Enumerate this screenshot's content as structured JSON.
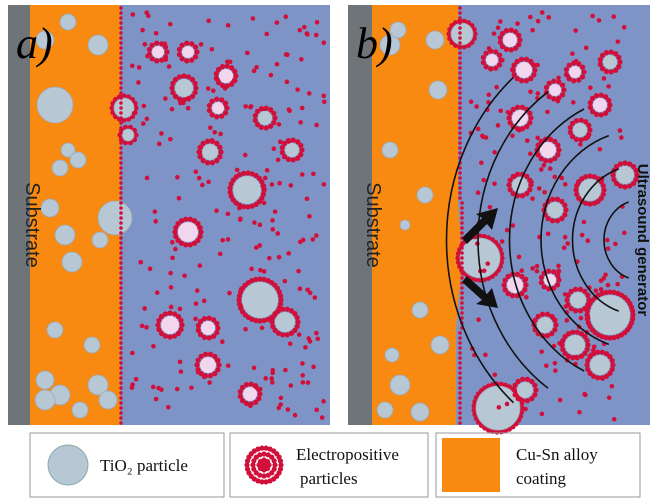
{
  "panels": [
    {
      "label": "a)",
      "substrate": "Substrate"
    },
    {
      "label": "b)",
      "substrate": "Substrate",
      "generator": "Ultrasound generator"
    }
  ],
  "legend": [
    {
      "label": "TiO₂ particle"
    },
    {
      "label": [
        "Electropositive",
        "particles"
      ]
    },
    {
      "label": [
        "Cu-Sn alloy",
        "coating"
      ]
    }
  ]
}
